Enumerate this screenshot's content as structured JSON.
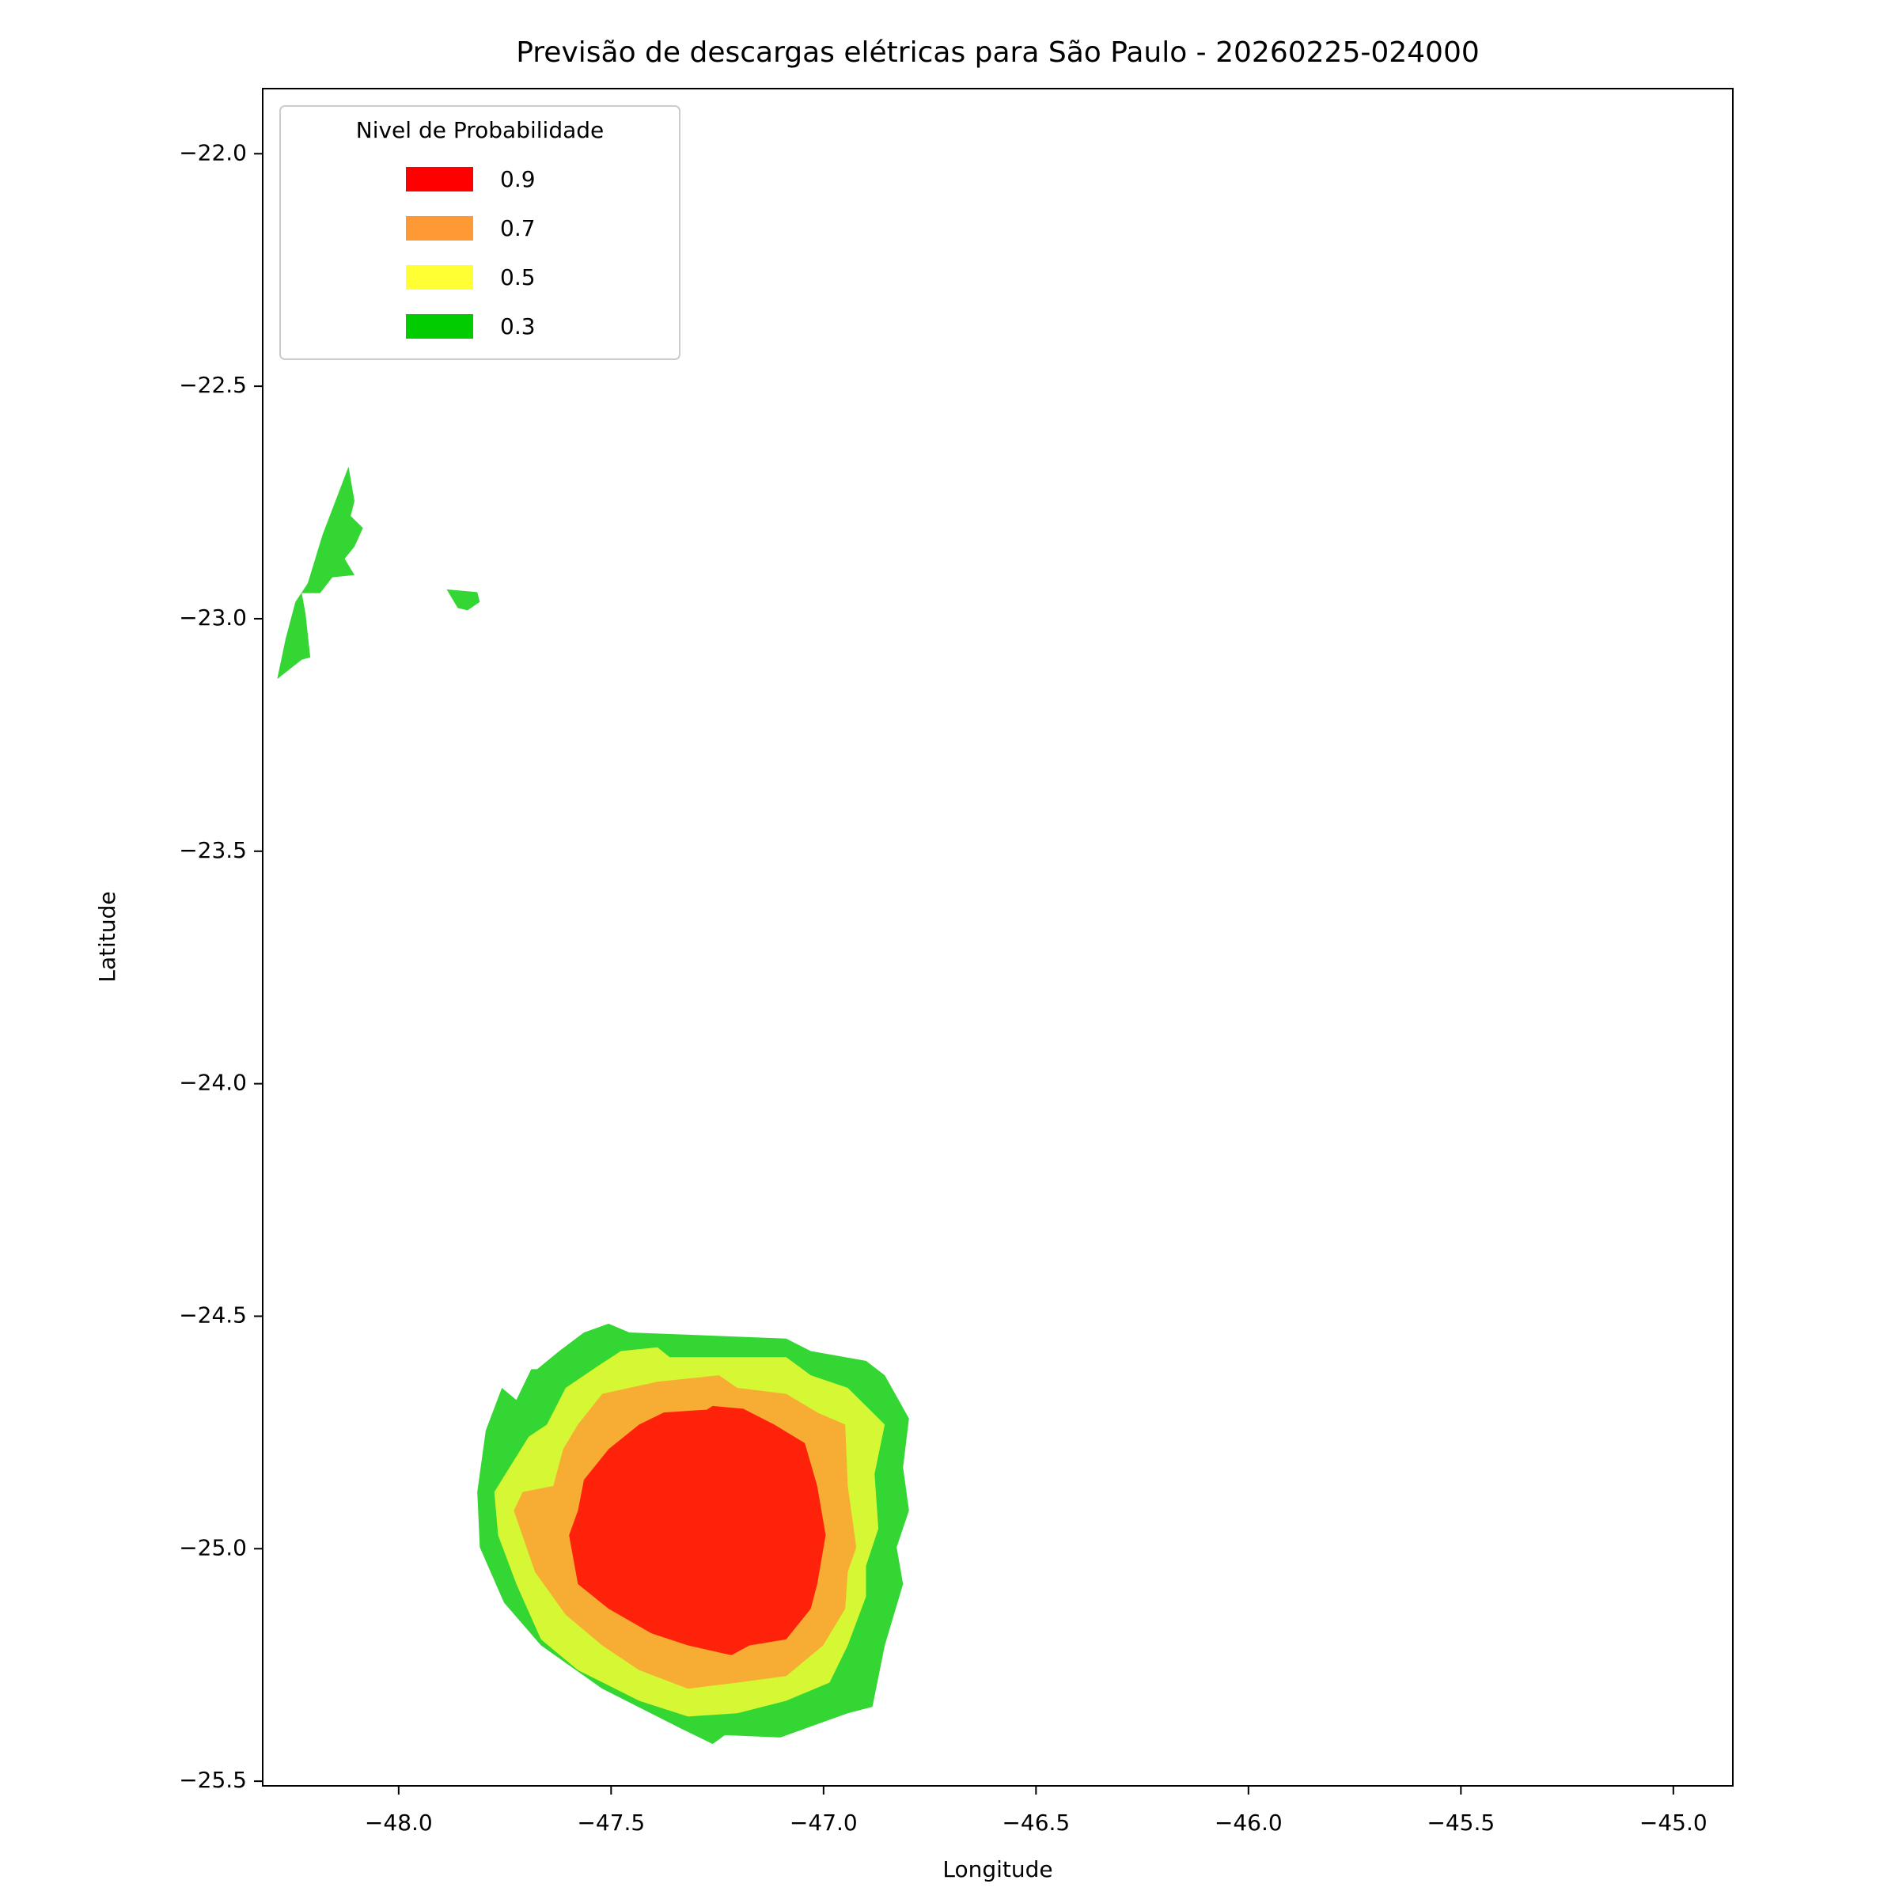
{
  "chart_data": {
    "type": "contour",
    "title": "Previsão de descargas elétricas para São Paulo - 20260225-024000",
    "x_label": "Longitude",
    "y_label": "Latitude",
    "xlim": [
      -48.32,
      -44.86
    ],
    "ylim": [
      -25.51,
      -21.86
    ],
    "xticks": [
      {
        "value": -48,
        "label": "−48.0"
      },
      {
        "value": -47.5,
        "label": "−47.5"
      },
      {
        "value": -47,
        "label": "−47.0"
      },
      {
        "value": -46.5,
        "label": "−46.5"
      },
      {
        "value": -46,
        "label": "−46.0"
      },
      {
        "value": -45.5,
        "label": "−45.5"
      },
      {
        "value": -45,
        "label": "−45.0"
      }
    ],
    "yticks": [
      {
        "value": -22,
        "label": "−22.0"
      },
      {
        "value": -22.5,
        "label": "−22.5"
      },
      {
        "value": -23,
        "label": "−23.0"
      },
      {
        "value": -23.5,
        "label": "−23.5"
      },
      {
        "value": -24,
        "label": "−24.0"
      },
      {
        "value": -24.5,
        "label": "−24.5"
      },
      {
        "value": -25,
        "label": "−25.0"
      },
      {
        "value": -25.5,
        "label": "−25.5"
      }
    ],
    "grid": false,
    "alpha": 0.8,
    "legend": {
      "title": "Nivel de Probabilidade",
      "loc": "upper left"
    },
    "series": [
      {
        "name": "0.9",
        "color": "#ff0000",
        "polygons": [
          [
            [
              -47.434,
              -24.733
            ],
            [
              -47.376,
              -24.707
            ],
            [
              -47.275,
              -24.701
            ],
            [
              -47.261,
              -24.693
            ],
            [
              -47.189,
              -24.699
            ],
            [
              -47.116,
              -24.733
            ],
            [
              -47.044,
              -24.773
            ],
            [
              -47.015,
              -24.865
            ],
            [
              -46.995,
              -24.971
            ],
            [
              -47.015,
              -25.076
            ],
            [
              -47.03,
              -25.129
            ],
            [
              -47.088,
              -25.195
            ],
            [
              -47.174,
              -25.208
            ],
            [
              -47.217,
              -25.229
            ],
            [
              -47.319,
              -25.208
            ],
            [
              -47.405,
              -25.182
            ],
            [
              -47.506,
              -25.129
            ],
            [
              -47.578,
              -25.076
            ],
            [
              -47.599,
              -24.971
            ],
            [
              -47.578,
              -24.918
            ],
            [
              -47.564,
              -24.852
            ],
            [
              -47.506,
              -24.786
            ]
          ]
        ]
      },
      {
        "name": "0.7",
        "color": "#ff9933",
        "polygons": [
          [
            [
              -47.521,
              -24.667
            ],
            [
              -47.391,
              -24.641
            ],
            [
              -47.246,
              -24.627
            ],
            [
              -47.203,
              -24.654
            ],
            [
              -47.088,
              -24.667
            ],
            [
              -47.015,
              -24.707
            ],
            [
              -46.949,
              -24.733
            ],
            [
              -46.943,
              -24.865
            ],
            [
              -46.923,
              -24.997
            ],
            [
              -46.943,
              -25.05
            ],
            [
              -46.949,
              -25.129
            ],
            [
              -47.001,
              -25.208
            ],
            [
              -47.088,
              -25.274
            ],
            [
              -47.203,
              -25.288
            ],
            [
              -47.319,
              -25.301
            ],
            [
              -47.434,
              -25.261
            ],
            [
              -47.521,
              -25.208
            ],
            [
              -47.607,
              -25.142
            ],
            [
              -47.679,
              -25.05
            ],
            [
              -47.729,
              -24.918
            ],
            [
              -47.708,
              -24.878
            ],
            [
              -47.636,
              -24.865
            ],
            [
              -47.613,
              -24.786
            ],
            [
              -47.578,
              -24.733
            ]
          ]
        ]
      },
      {
        "name": "0.5",
        "color": "#ffff33",
        "polygons": [
          [
            [
              -47.607,
              -24.654
            ],
            [
              -47.521,
              -24.601
            ],
            [
              -47.477,
              -24.575
            ],
            [
              -47.391,
              -24.567
            ],
            [
              -47.362,
              -24.588
            ],
            [
              -47.088,
              -24.588
            ],
            [
              -47.03,
              -24.627
            ],
            [
              -46.943,
              -24.654
            ],
            [
              -46.856,
              -24.733
            ],
            [
              -46.88,
              -24.839
            ],
            [
              -46.871,
              -24.957
            ],
            [
              -46.9,
              -25.037
            ],
            [
              -46.9,
              -25.103
            ],
            [
              -46.943,
              -25.208
            ],
            [
              -46.986,
              -25.288
            ],
            [
              -47.088,
              -25.327
            ],
            [
              -47.203,
              -25.354
            ],
            [
              -47.319,
              -25.361
            ],
            [
              -47.434,
              -25.327
            ],
            [
              -47.578,
              -25.261
            ],
            [
              -47.665,
              -25.195
            ],
            [
              -47.723,
              -25.076
            ],
            [
              -47.766,
              -24.971
            ],
            [
              -47.775,
              -24.878
            ],
            [
              -47.694,
              -24.759
            ],
            [
              -47.651,
              -24.733
            ]
          ]
        ]
      },
      {
        "name": "0.3",
        "color": "#00cc00",
        "polygons": [
          [
            [
              -47.674,
              -24.614
            ],
            [
              -47.622,
              -24.575
            ],
            [
              -47.564,
              -24.535
            ],
            [
              -47.506,
              -24.516
            ],
            [
              -47.457,
              -24.535
            ],
            [
              -47.088,
              -24.548
            ],
            [
              -47.03,
              -24.575
            ],
            [
              -46.9,
              -24.596
            ],
            [
              -46.856,
              -24.627
            ],
            [
              -46.799,
              -24.72
            ],
            [
              -46.813,
              -24.825
            ],
            [
              -46.799,
              -24.918
            ],
            [
              -46.828,
              -24.997
            ],
            [
              -46.813,
              -25.076
            ],
            [
              -46.856,
              -25.208
            ],
            [
              -46.885,
              -25.34
            ],
            [
              -46.943,
              -25.354
            ],
            [
              -47.102,
              -25.406
            ],
            [
              -47.232,
              -25.401
            ],
            [
              -47.261,
              -25.42
            ],
            [
              -47.333,
              -25.388
            ],
            [
              -47.521,
              -25.301
            ],
            [
              -47.665,
              -25.208
            ],
            [
              -47.752,
              -25.116
            ],
            [
              -47.809,
              -24.997
            ],
            [
              -47.815,
              -24.878
            ],
            [
              -47.795,
              -24.746
            ],
            [
              -47.757,
              -24.654
            ],
            [
              -47.723,
              -24.68
            ],
            [
              -47.688,
              -24.614
            ]
          ],
          [
            [
              -48.286,
              -23.13
            ],
            [
              -48.266,
              -23.043
            ],
            [
              -48.243,
              -22.964
            ],
            [
              -48.214,
              -22.924
            ],
            [
              -48.179,
              -22.819
            ],
            [
              -48.118,
              -22.673
            ],
            [
              -48.104,
              -22.747
            ],
            [
              -48.113,
              -22.779
            ],
            [
              -48.084,
              -22.805
            ],
            [
              -48.104,
              -22.845
            ],
            [
              -48.127,
              -22.871
            ],
            [
              -48.104,
              -22.906
            ],
            [
              -48.156,
              -22.911
            ],
            [
              -48.185,
              -22.945
            ],
            [
              -48.228,
              -22.945
            ],
            [
              -48.219,
              -22.99
            ],
            [
              -48.208,
              -23.083
            ],
            [
              -48.228,
              -23.088
            ],
            [
              -48.257,
              -23.109
            ]
          ],
          [
            [
              -47.887,
              -22.937
            ],
            [
              -47.815,
              -22.943
            ],
            [
              -47.809,
              -22.964
            ],
            [
              -47.838,
              -22.982
            ],
            [
              -47.861,
              -22.977
            ]
          ]
        ]
      }
    ]
  }
}
